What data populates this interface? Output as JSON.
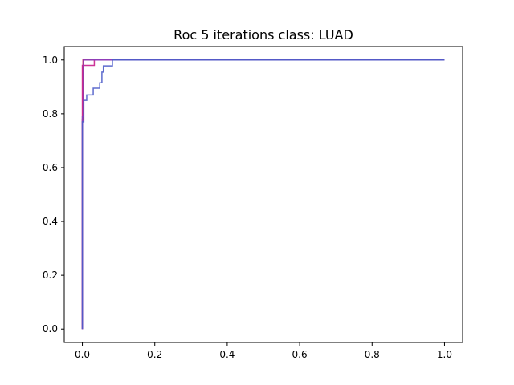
{
  "chart_data": {
    "type": "line",
    "title": "Roc 5 iterations class: LUAD",
    "xlabel": "",
    "ylabel": "",
    "xlim": [
      -0.05,
      1.05
    ],
    "ylim": [
      -0.05,
      1.05
    ],
    "grid": false,
    "x_ticks": [
      0.0,
      0.2,
      0.4,
      0.6,
      0.8,
      1.0
    ],
    "y_ticks": [
      0.0,
      0.2,
      0.4,
      0.6,
      0.8,
      1.0
    ],
    "x_tick_labels": [
      "0.0",
      "0.2",
      "0.4",
      "0.6",
      "0.8",
      "1.0"
    ],
    "y_tick_labels": [
      "0.0",
      "0.2",
      "0.4",
      "0.6",
      "0.8",
      "1.0"
    ],
    "series": [
      {
        "color": "#bf3fbf",
        "x": [
          0.0,
          0.0,
          0.002,
          0.002,
          1.0
        ],
        "y": [
          0.0,
          0.77,
          0.77,
          1.0,
          1.0
        ]
      },
      {
        "color": "#d62728",
        "x": [
          0.0,
          0.0,
          0.002,
          0.002,
          1.0
        ],
        "y": [
          0.0,
          0.78,
          0.78,
          1.0,
          1.0
        ]
      },
      {
        "color": "#c81e8c",
        "x": [
          0.0,
          0.0,
          0.005,
          0.005,
          0.033,
          0.033,
          0.04,
          0.04,
          1.0
        ],
        "y": [
          0.0,
          0.98,
          0.98,
          0.98,
          0.98,
          1.0,
          1.0,
          1.0,
          1.0
        ]
      },
      {
        "color": "#8a3fbf",
        "x": [
          0.0,
          0.0,
          0.003,
          0.003,
          1.0
        ],
        "y": [
          0.0,
          0.79,
          0.79,
          1.0,
          1.0
        ]
      },
      {
        "color": "#4c5cc9",
        "x": [
          0.0,
          0.0,
          0.004,
          0.004,
          0.012,
          0.012,
          0.03,
          0.03,
          0.048,
          0.048,
          0.054,
          0.054,
          0.058,
          0.058,
          0.065,
          0.065,
          0.083,
          0.083,
          1.0
        ],
        "y": [
          0.0,
          0.77,
          0.77,
          0.85,
          0.85,
          0.87,
          0.87,
          0.895,
          0.895,
          0.915,
          0.915,
          0.955,
          0.955,
          0.978,
          0.978,
          0.978,
          0.978,
          1.0,
          1.0
        ]
      }
    ]
  }
}
